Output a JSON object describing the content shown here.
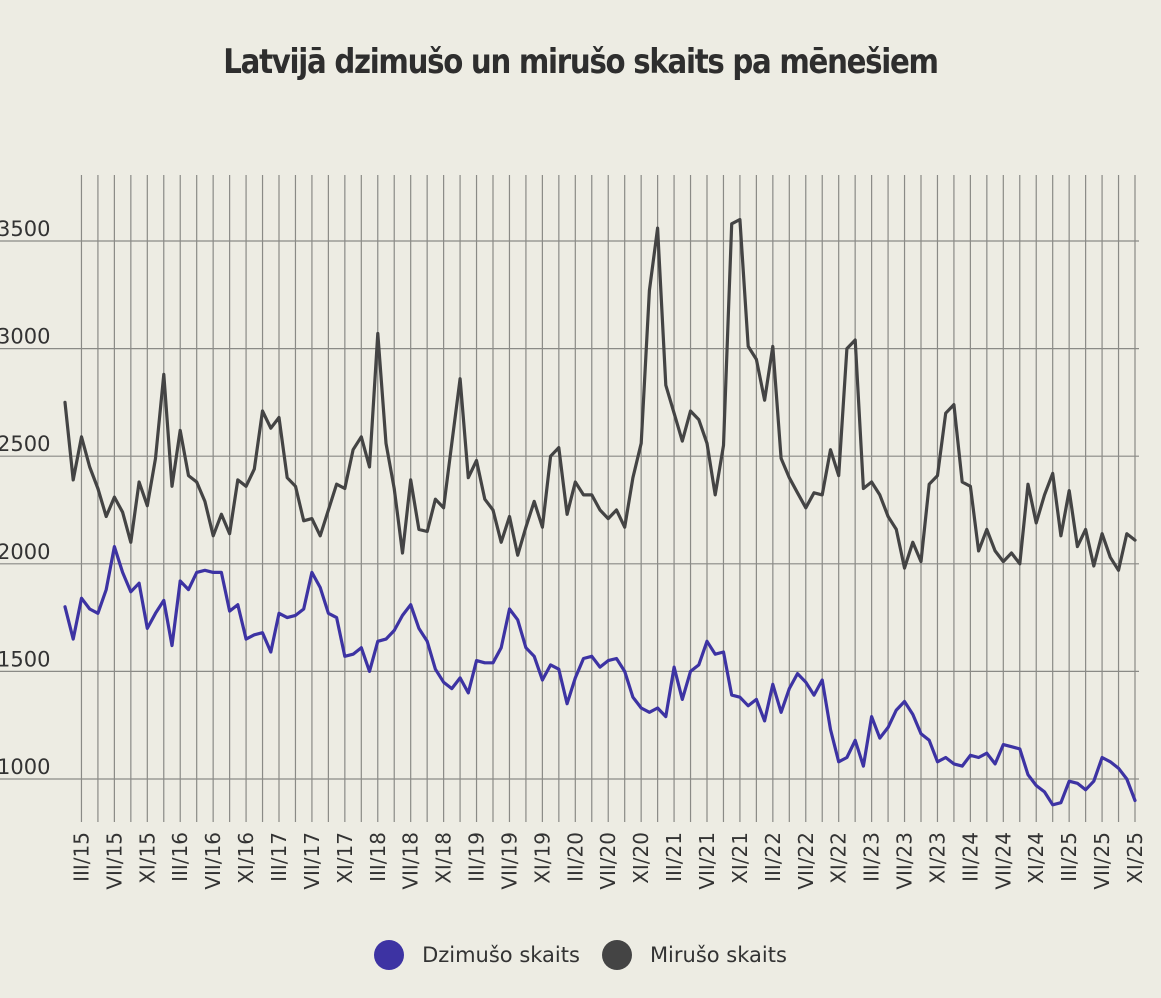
{
  "chart_data": {
    "type": "line",
    "title": "Latvijā dzimušo un mirušo skaits pa mēnešiem",
    "xlabel": "",
    "ylabel": "",
    "ylim": [
      820,
      3800
    ],
    "yticks": [
      1000,
      1500,
      2000,
      2500,
      3000,
      3500
    ],
    "x_start": "I/15",
    "x_end": "XI/25",
    "x_tick_labels": [
      "III/15",
      "VII/15",
      "XI/15",
      "III/16",
      "VII/16",
      "XI/16",
      "III/17",
      "VII/17",
      "XI/17",
      "III/18",
      "VII/18",
      "XI/18",
      "III/19",
      "VII/19",
      "XI/19",
      "III/20",
      "VII/20",
      "XI/20",
      "III/21",
      "VII/21",
      "XI/21",
      "III/22",
      "VII/22",
      "XI/22",
      "III/23",
      "VII/23",
      "XI/23",
      "III/24",
      "VII/24",
      "XI/24",
      "III/25",
      "VII/25",
      "XI/25"
    ],
    "legend_position": "bottom",
    "series": [
      {
        "name": "Dzimušo skaits",
        "color": "#3d33a3",
        "values": [
          1800,
          1650,
          1840,
          1790,
          1770,
          1880,
          2080,
          1960,
          1870,
          1910,
          1700,
          1770,
          1830,
          1620,
          1920,
          1880,
          1960,
          1970,
          1960,
          1960,
          1780,
          1810,
          1650,
          1670,
          1680,
          1590,
          1770,
          1750,
          1760,
          1790,
          1960,
          1890,
          1770,
          1750,
          1570,
          1580,
          1610,
          1500,
          1640,
          1650,
          1690,
          1760,
          1810,
          1700,
          1640,
          1510,
          1450,
          1420,
          1470,
          1400,
          1550,
          1540,
          1540,
          1610,
          1790,
          1740,
          1610,
          1570,
          1460,
          1530,
          1510,
          1350,
          1470,
          1560,
          1570,
          1520,
          1550,
          1560,
          1500,
          1380,
          1330,
          1310,
          1330,
          1290,
          1520,
          1370,
          1500,
          1530,
          1640,
          1580,
          1590,
          1390,
          1380,
          1340,
          1370,
          1270,
          1440,
          1310,
          1420,
          1490,
          1450,
          1390,
          1460,
          1230,
          1080,
          1100,
          1180,
          1060,
          1290,
          1190,
          1240,
          1320,
          1360,
          1300,
          1210,
          1180,
          1080,
          1100,
          1070,
          1060,
          1110,
          1100,
          1120,
          1070,
          1160,
          1150,
          1140,
          1020,
          970,
          940,
          880,
          890,
          990,
          980,
          950,
          990,
          1100,
          1080,
          1050,
          1000,
          900
        ]
      },
      {
        "name": "Mirušo skaits",
        "color": "#444444",
        "values": [
          2750,
          2390,
          2590,
          2450,
          2350,
          2220,
          2310,
          2240,
          2100,
          2380,
          2270,
          2490,
          2880,
          2360,
          2620,
          2410,
          2380,
          2290,
          2130,
          2230,
          2140,
          2390,
          2360,
          2440,
          2710,
          2630,
          2680,
          2400,
          2360,
          2200,
          2210,
          2130,
          2250,
          2370,
          2350,
          2530,
          2590,
          2450,
          3070,
          2560,
          2350,
          2050,
          2390,
          2160,
          2150,
          2300,
          2260,
          2560,
          2860,
          2400,
          2480,
          2300,
          2250,
          2100,
          2220,
          2040,
          2170,
          2290,
          2170,
          2500,
          2540,
          2230,
          2380,
          2320,
          2320,
          2250,
          2210,
          2250,
          2170,
          2400,
          2560,
          3270,
          3560,
          2830,
          2700,
          2570,
          2710,
          2670,
          2560,
          2320,
          2550,
          3580,
          3600,
          3010,
          2950,
          2760,
          3010,
          2490,
          2400,
          2330,
          2260,
          2330,
          2320,
          2530,
          2410,
          3000,
          3040,
          2350,
          2380,
          2320,
          2220,
          2160,
          1980,
          2100,
          2010,
          2370,
          2410,
          2700,
          2740,
          2380,
          2360,
          2060,
          2160,
          2060,
          2010,
          2050,
          2000,
          2370,
          2190,
          2320,
          2420,
          2130,
          2340,
          2080,
          2160,
          1990,
          2140,
          2030,
          1970,
          2140,
          2110
        ]
      }
    ]
  }
}
